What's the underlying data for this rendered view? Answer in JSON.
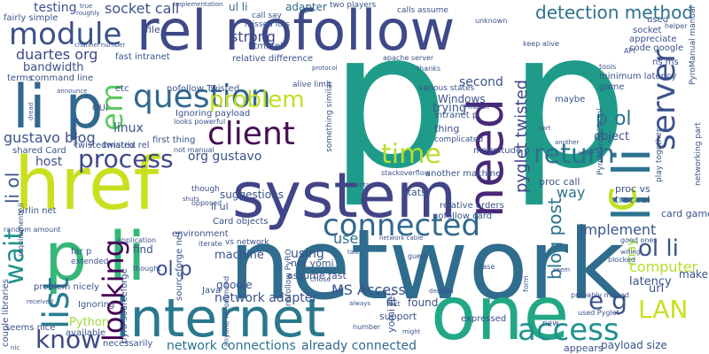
{
  "words": {
    "p_big": "p p",
    "network": "network",
    "href": "href",
    "one": "one",
    "system": "system",
    "internet": "internet",
    "rel_nofollow": "rel nofollow",
    "p_li": "p li",
    "li_p": "li p",
    "need": "need",
    "server": "server",
    "li_li": "li li",
    "question": "question",
    "client": "client",
    "connected": "connected",
    "module": "module",
    "process": "process",
    "access": "access",
    "time": "time",
    "return": "return",
    "list": "list",
    "looking": "looking",
    "problem": "problem",
    "wait": "wait",
    "know": "know",
    "LAN": "LAN",
    "e_g": "e g",
    "ol_li": "ol li",
    "li_ol": "li ol",
    "c": "c",
    "em": "em",
    "p_ol": "p ol",
    "computer": "computer",
    "pyglet_twisted": "pyglet twisted",
    "detection_method": "detection method",
    "socket_call": "socket call",
    "strong": "strong",
    "duartes_org": "duartes org",
    "gustavo_blog": "gustavo blog",
    "testing": "testing",
    "ul_li": "ul li",
    "adapter": "adapter",
    "second": "second",
    "blog_post": "blog post",
    "implement": "implement",
    "ol_p": "ol p",
    "network_adapter": "network adapter",
    "MS_Access": "MS Access",
    "network_connections": "network connections",
    "already_connected": "already connected",
    "bandwidth": "bandwidth",
    "host": "host",
    "linux": "linux",
    "org_gustavo": "org gustavo",
    "google": "google",
    "machine": "machine",
    "using": "using",
    "use": "use",
    "way": "way",
    "trying": "trying",
    "Windows": "Windows",
    "object": "object",
    "latency": "latency",
    "url": "url",
    "make": "make",
    "may": "may",
    "found": "found",
    "fit": "fit",
    "Python": "Python",
    "suggestions": "suggestions",
    "find": "find",
    "thing": "thing",
    "li_ul": "li ul",
    "assume_fast": "assume fast",
    "net_yomi": "net yomi",
    "stats": "stats",
    "support": "support",
    "expressed": "expressed",
    "appears": "appears",
    "payload_size": "payload size",
    "available": "available",
    "seems_nice": "seems nice",
    "proc_call": "proc call",
    "proc_vs": "proc vs",
    "trac_rel": "trac rel",
    "card_game": "card game",
    "game": "game",
    "file": "file",
    "html_rel": "html rel",
    "fast_intranet": "fast intranet",
    "GUI": "GUI",
    "etc": "etc",
    "command_line": "command line",
    "terms": "terms",
    "fairly_simple": "fairly simple",
    "appreciate": "appreciate",
    "code_google": "code google",
    "socket": "socket",
    "used": "used",
    "ns_ms": "ns ms",
    "minimum_latency": "minimum latency",
    "relative_difference": "relative difference",
    "alive_limit": "alive limit",
    "calls_assume": "calls assume",
    "two_players": "two players",
    "call_say": "call say",
    "missed_lots": "missed lots",
    "nofollow_Twisted": "nofollow Twisted",
    "Ignoring_payload": "Ignoring payload",
    "first_thing": "first thing",
    "twisted_rel": "twisted rel",
    "twistedmatrix": "twistedmatrix",
    "shared_Card": "shared Card",
    "Card_objects": "Card objects",
    "vs_network": "vs network",
    "environment": "environment",
    "another_machine": "another machine",
    "stackoverflow": "stackoverflow",
    "relative_orders": "relative orders",
    "nofollow_card": "nofollow card",
    "magnitude_p": "magnitude p",
    "intranet_p": "intranet p",
    "complicated": "complicated",
    "various_states": "various states",
    "maybe": "maybe",
    "apache_server": "apache server",
    "thanks": "thanks",
    "play_together": "play together",
    "PyroManual_html": "PyroManual html",
    "pyro_sourceforge": "pyro sourceforge",
    "sourceforge_net": "sourceforge net",
    "sirlin_net": "sirlin net",
    "random_amount": "random amount",
    "couple_libraries": "couple libraries",
    "Java": "Java",
    "necessarily": "necessarily",
    "good_ones": "good ones",
    "blocked": "blocked",
    "probably_missed": "probably missed",
    "used_Pyglet": "used Pyglet",
    "new": "new",
    "keep_alive": "keep alive",
    "unknown": "unknown",
    "helper": "helper",
    "API": "API",
    "tools": "tools",
    "networking_part": "networking part",
    "PyroManual_manual": "PyroManual manual",
    "something_similar": "something similar",
    "nofollow_PyRO": "nofollow PyRO",
    "yomi_rel": "yomi rel",
    "far_p": "far p",
    "extended": "extended",
    "Ignoring": "Ignoring",
    "problem_nicely": "problem nicely",
    "looks_powerful": "looks powerful",
    "though": "though",
    "opposed": "opposed",
    "not_manual": "not manual",
    "iterate": "iterate",
    "shuts": "shuts",
    "application": "application",
    "thought": "thought",
    "anyone_recommend": "anyone recommend",
    "chose": "chose",
    "guess": "guess",
    "network_cable": "network cable",
    "case": "case",
    "form": "form",
    "seem": "seem",
    "willing": "willing",
    "text": "text",
    "number": "number",
    "received": "received",
    "always": "always",
    "decided": "decided",
    "might": "might",
    "nic": "nic",
    "requirements_li": "requirements li",
    "acquiring": "acquiring",
    "dread": "dread",
    "announce": "announce",
    "channel_number": "channel number",
    "roughly": "roughly",
    "true": "true",
    "protocol": "protocol",
    "implementation": "implementation",
    "sort": "sort",
    "write": "write",
    "contents": "contents",
    "another": "another",
    "talk": "talk",
    "li_mdash": "li mdash"
  }
}
